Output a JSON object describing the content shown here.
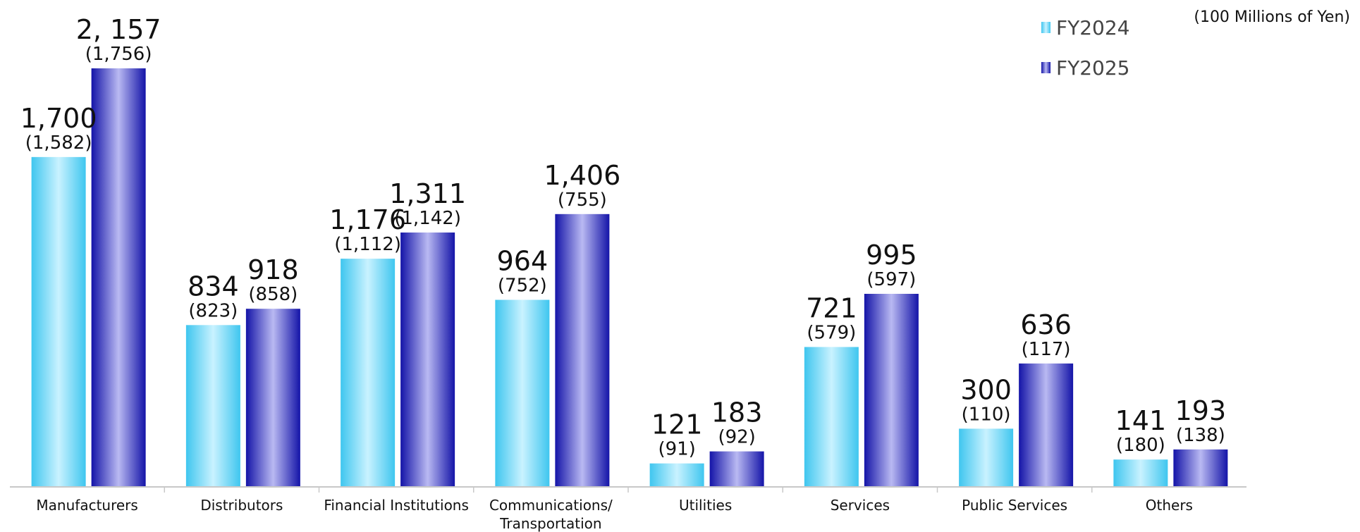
{
  "chart_data": {
    "type": "bar",
    "unit_label": "(100 Millions of Yen)",
    "categories": [
      "Manufacturers",
      "Distributors",
      "Financial Institutions",
      "Communications/ Transportation",
      "Utilities",
      "Services",
      "Public Services",
      "Others"
    ],
    "category_lines": [
      [
        "Manufacturers"
      ],
      [
        "Distributors"
      ],
      [
        "Financial Institutions"
      ],
      [
        "Communications/",
        "Transportation"
      ],
      [
        "Utilities"
      ],
      [
        "Services"
      ],
      [
        "Public Services"
      ],
      [
        "Others"
      ]
    ],
    "series": [
      {
        "name": "FY2024",
        "color": "#5fd3f3",
        "values": [
          1700,
          834,
          1176,
          964,
          121,
          721,
          300,
          141
        ],
        "labels": [
          "1,700",
          "834",
          "1,176",
          "964",
          "121",
          "721",
          "300",
          "141"
        ],
        "sublabels": [
          "(1,582)",
          "(823)",
          "(1,112)",
          "(752)",
          "(91)",
          "(579)",
          "(110)",
          "(180)"
        ]
      },
      {
        "name": "FY2025",
        "color": "#1f1fb8",
        "values": [
          2157,
          918,
          1311,
          1406,
          183,
          995,
          636,
          193
        ],
        "labels": [
          "2, 157",
          "918",
          "1,311",
          "1,406",
          "183",
          "995",
          "636",
          "193"
        ],
        "sublabels": [
          "(1,756)",
          "(858)",
          "(1,142)",
          "(755)",
          "(92)",
          "(597)",
          "(117)",
          "(138)"
        ]
      }
    ],
    "legend": {
      "placement": "top-right"
    },
    "ylim": [
      0,
      2157
    ],
    "grid": false
  }
}
